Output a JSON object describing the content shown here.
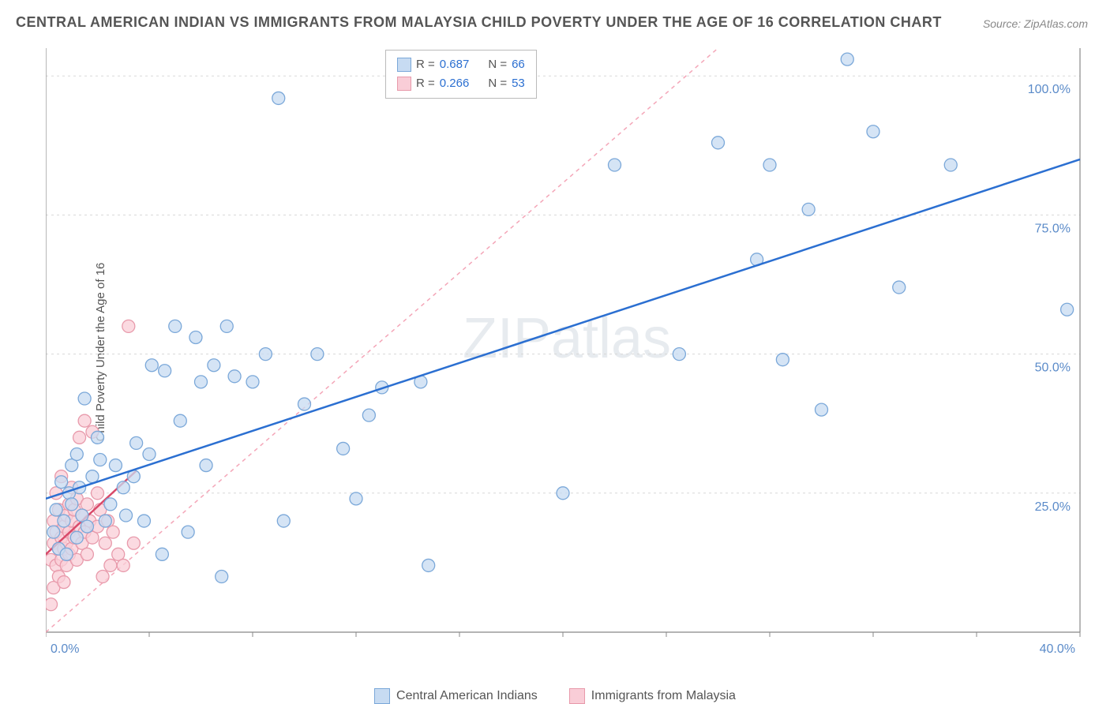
{
  "title": "CENTRAL AMERICAN INDIAN VS IMMIGRANTS FROM MALAYSIA CHILD POVERTY UNDER THE AGE OF 16 CORRELATION CHART",
  "source": "Source: ZipAtlas.com",
  "ylabel": "Child Poverty Under the Age of 16",
  "watermark": "ZIPatlas",
  "chart": {
    "type": "scatter",
    "xlim": [
      0,
      40
    ],
    "ylim": [
      0,
      105
    ],
    "y_gridlines": [
      25,
      50,
      75,
      100
    ],
    "y_tick_labels": [
      "25.0%",
      "50.0%",
      "75.0%",
      "100.0%"
    ],
    "x_ticks_minor": [
      0,
      4,
      8,
      12,
      16,
      20,
      24,
      28,
      32,
      36,
      40
    ],
    "x_min_label": "0.0%",
    "x_max_label": "40.0%",
    "background_color": "#ffffff",
    "grid_color": "#d8d8d8",
    "axis_color": "#888888",
    "tick_label_color": "#5b8bc9",
    "series": [
      {
        "name": "Central American Indians",
        "marker_fill": "#c7dbf2",
        "marker_stroke": "#7ba8d9",
        "marker_radius": 8,
        "line_color": "#2b6fd1",
        "line_width": 2.5,
        "line_dash": "none",
        "R": 0.687,
        "N": 66,
        "trend": {
          "x1": 0,
          "y1": 24,
          "x2": 40,
          "y2": 85
        },
        "ref_line": {
          "color": "#f4a6b8",
          "dash": "5,5",
          "width": 1.5,
          "x1": 0,
          "y1": 0,
          "x2": 26,
          "y2": 105
        },
        "points": [
          [
            0.3,
            18
          ],
          [
            0.4,
            22
          ],
          [
            0.5,
            15
          ],
          [
            0.6,
            27
          ],
          [
            0.7,
            20
          ],
          [
            0.8,
            14
          ],
          [
            0.9,
            25
          ],
          [
            1.0,
            30
          ],
          [
            1.0,
            23
          ],
          [
            1.2,
            32
          ],
          [
            1.2,
            17
          ],
          [
            1.3,
            26
          ],
          [
            1.4,
            21
          ],
          [
            1.5,
            42
          ],
          [
            1.6,
            19
          ],
          [
            1.8,
            28
          ],
          [
            2.0,
            35
          ],
          [
            2.1,
            31
          ],
          [
            2.3,
            20
          ],
          [
            2.5,
            23
          ],
          [
            2.7,
            30
          ],
          [
            3.0,
            26
          ],
          [
            3.1,
            21
          ],
          [
            3.4,
            28
          ],
          [
            3.5,
            34
          ],
          [
            3.8,
            20
          ],
          [
            4.0,
            32
          ],
          [
            4.1,
            48
          ],
          [
            4.5,
            14
          ],
          [
            4.6,
            47
          ],
          [
            5.0,
            55
          ],
          [
            5.2,
            38
          ],
          [
            5.5,
            18
          ],
          [
            5.8,
            53
          ],
          [
            6.0,
            45
          ],
          [
            6.2,
            30
          ],
          [
            6.5,
            48
          ],
          [
            6.8,
            10
          ],
          [
            7.0,
            55
          ],
          [
            7.3,
            46
          ],
          [
            8.0,
            45
          ],
          [
            8.5,
            50
          ],
          [
            9.0,
            96
          ],
          [
            9.2,
            20
          ],
          [
            10.0,
            41
          ],
          [
            10.5,
            50
          ],
          [
            11.5,
            33
          ],
          [
            12.0,
            24
          ],
          [
            12.5,
            39
          ],
          [
            13.0,
            44
          ],
          [
            14.5,
            45
          ],
          [
            14.8,
            12
          ],
          [
            20.0,
            25
          ],
          [
            22.0,
            84
          ],
          [
            24.5,
            50
          ],
          [
            26.0,
            88
          ],
          [
            27.5,
            67
          ],
          [
            28.0,
            84
          ],
          [
            28.5,
            49
          ],
          [
            29.5,
            76
          ],
          [
            30.0,
            40
          ],
          [
            31.0,
            103
          ],
          [
            32.0,
            90
          ],
          [
            33.0,
            62
          ],
          [
            35.0,
            84
          ],
          [
            39.5,
            58
          ]
        ]
      },
      {
        "name": "Immigrants from Malaysia",
        "marker_fill": "#f9cdd7",
        "marker_stroke": "#e89aab",
        "marker_radius": 8,
        "line_color": "#d94a6a",
        "line_width": 2.5,
        "line_dash": "none",
        "R": 0.266,
        "N": 53,
        "trend": {
          "x1": 0,
          "y1": 14,
          "x2": 3.5,
          "y2": 29
        },
        "points": [
          [
            0.2,
            5
          ],
          [
            0.2,
            13
          ],
          [
            0.3,
            16
          ],
          [
            0.3,
            8
          ],
          [
            0.3,
            20
          ],
          [
            0.4,
            12
          ],
          [
            0.4,
            18
          ],
          [
            0.4,
            25
          ],
          [
            0.5,
            15
          ],
          [
            0.5,
            10
          ],
          [
            0.5,
            22
          ],
          [
            0.6,
            17
          ],
          [
            0.6,
            13
          ],
          [
            0.6,
            28
          ],
          [
            0.7,
            19
          ],
          [
            0.7,
            15
          ],
          [
            0.7,
            9
          ],
          [
            0.8,
            21
          ],
          [
            0.8,
            16
          ],
          [
            0.8,
            12
          ],
          [
            0.9,
            23
          ],
          [
            0.9,
            18
          ],
          [
            0.9,
            14
          ],
          [
            1.0,
            20
          ],
          [
            1.0,
            26
          ],
          [
            1.0,
            15
          ],
          [
            1.1,
            22
          ],
          [
            1.1,
            17
          ],
          [
            1.2,
            24
          ],
          [
            1.2,
            13
          ],
          [
            1.3,
            19
          ],
          [
            1.3,
            35
          ],
          [
            1.4,
            21
          ],
          [
            1.4,
            16
          ],
          [
            1.5,
            38
          ],
          [
            1.5,
            18
          ],
          [
            1.6,
            23
          ],
          [
            1.6,
            14
          ],
          [
            1.7,
            20
          ],
          [
            1.8,
            36
          ],
          [
            1.8,
            17
          ],
          [
            2.0,
            25
          ],
          [
            2.0,
            19
          ],
          [
            2.1,
            22
          ],
          [
            2.2,
            10
          ],
          [
            2.3,
            16
          ],
          [
            2.4,
            20
          ],
          [
            2.5,
            12
          ],
          [
            2.6,
            18
          ],
          [
            2.8,
            14
          ],
          [
            3.0,
            12
          ],
          [
            3.2,
            55
          ],
          [
            3.4,
            16
          ]
        ]
      }
    ]
  },
  "legend_top": {
    "rows": [
      {
        "swatch_fill": "#c7dbf2",
        "swatch_stroke": "#7ba8d9",
        "r_label": "R =",
        "r_val": "0.687",
        "n_label": "N =",
        "n_val": "66",
        "val_color": "#2b6fd1"
      },
      {
        "swatch_fill": "#f9cdd7",
        "swatch_stroke": "#e89aab",
        "r_label": "R =",
        "r_val": "0.266",
        "n_label": "N =",
        "n_val": "53",
        "val_color": "#2b6fd1"
      }
    ]
  },
  "legend_bottom": {
    "items": [
      {
        "swatch_fill": "#c7dbf2",
        "swatch_stroke": "#7ba8d9",
        "label": "Central American Indians"
      },
      {
        "swatch_fill": "#f9cdd7",
        "swatch_stroke": "#e89aab",
        "label": "Immigrants from Malaysia"
      }
    ]
  }
}
